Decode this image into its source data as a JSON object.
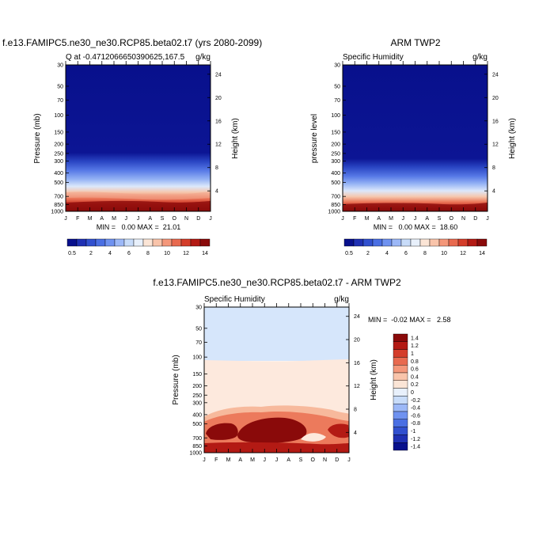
{
  "page": {
    "background": "#ffffff"
  },
  "palette": [
    "#08108c",
    "#1f30b3",
    "#3150cf",
    "#4a6fe3",
    "#6f92f0",
    "#9cb8f7",
    "#c8dcf9",
    "#e8f0fb",
    "#fbe5d6",
    "#f9c4aa",
    "#f4977a",
    "#e86a4f",
    "#d43d2a",
    "#b31a14",
    "#8a0a0a"
  ],
  "months": [
    "J",
    "F",
    "M",
    "A",
    "M",
    "J",
    "J",
    "A",
    "S",
    "O",
    "N",
    "D",
    "J"
  ],
  "chart_data": [
    {
      "type": "heatmap",
      "title": "f.e13.FAMIPC5.ne30_ne30.RCP85.beta02.t7 (yrs 2080-2099)",
      "left_label": "Q at -0.4712066650390625,167.5",
      "right_label": "g/kg",
      "ylabel": "Pressure (mb)",
      "ylabel_right": "Height (km)",
      "pressure_ticks": [
        "30",
        "50",
        "70",
        "100",
        "150",
        "200",
        "250",
        "300",
        "400",
        "500",
        "700",
        "850",
        "1000"
      ],
      "height_ticks": [
        "24",
        "20",
        "16",
        "12",
        "8",
        "4"
      ],
      "x_tick_labels": [
        "J",
        "F",
        "M",
        "A",
        "M",
        "J",
        "J",
        "A",
        "S",
        "O",
        "N",
        "D",
        "J"
      ],
      "minmax_text": "MIN =   0.00 MAX =  21.01",
      "min": 0.0,
      "max": 21.01,
      "colorbar_labels": [
        "0.5",
        "2",
        "4",
        "6",
        "8",
        "10",
        "12",
        "14"
      ]
    },
    {
      "type": "heatmap",
      "title": "ARM TWP2",
      "left_label": "Specific Humidity",
      "right_label": "g/kg",
      "ylabel": "pressure level",
      "ylabel_right": "Height (km)",
      "pressure_ticks": [
        "30",
        "50",
        "70",
        "100",
        "150",
        "200",
        "250",
        "300",
        "400",
        "500",
        "700",
        "850",
        "1000"
      ],
      "height_ticks": [
        "24",
        "20",
        "16",
        "12",
        "8",
        "4"
      ],
      "x_tick_labels": [
        "J",
        "F",
        "M",
        "A",
        "M",
        "J",
        "J",
        "A",
        "S",
        "O",
        "N",
        "D",
        "J"
      ],
      "minmax_text": "MIN =   0.00 MAX =  18.60",
      "min": 0.0,
      "max": 18.6,
      "colorbar_labels": [
        "0.5",
        "2",
        "4",
        "6",
        "8",
        "10",
        "12",
        "14"
      ]
    },
    {
      "type": "heatmap",
      "title": "f.e13.FAMIPC5.ne30_ne30.RCP85.beta02.t7 - ARM TWP2",
      "left_label": "Specific Humidity",
      "right_label": "g/kg",
      "ylabel": "Pressure (mb)",
      "ylabel_right": "Height (km)",
      "pressure_ticks": [
        "30",
        "50",
        "70",
        "100",
        "150",
        "200",
        "250",
        "300",
        "400",
        "500",
        "700",
        "850",
        "1000"
      ],
      "height_ticks": [
        "24",
        "20",
        "16",
        "12",
        "8",
        "4"
      ],
      "x_tick_labels": [
        "J",
        "F",
        "M",
        "A",
        "M",
        "J",
        "J",
        "A",
        "S",
        "O",
        "N",
        "D",
        "J"
      ],
      "minmax_text": "MIN =  -0.02 MAX =   2.58",
      "min": -0.02,
      "max": 2.58,
      "colorbar_labels": [
        "1.4",
        "1.2",
        "1",
        "0.8",
        "0.6",
        "0.4",
        "0.2",
        "0",
        "-0.2",
        "-0.4",
        "-0.6",
        "-0.8",
        "-1",
        "-1.2",
        "-1.4"
      ]
    }
  ]
}
